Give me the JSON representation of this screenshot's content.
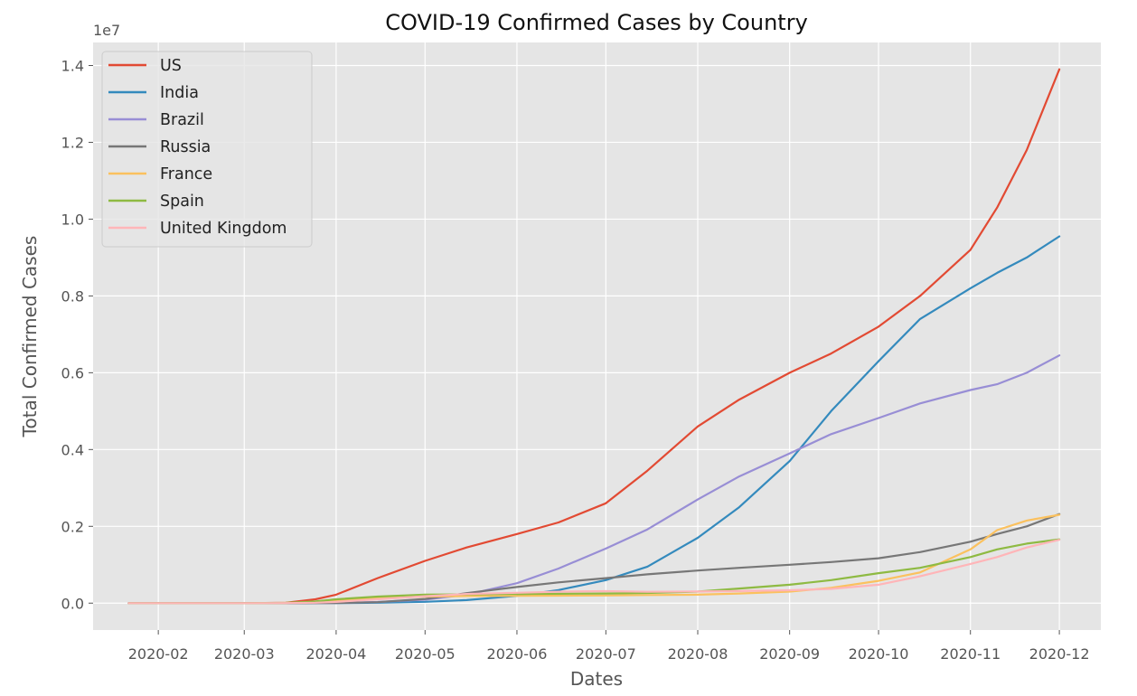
{
  "chart_data": {
    "type": "line",
    "title": "COVID-19 Confirmed Cases by Country",
    "xlabel": "Dates",
    "ylabel": "Total Confirmed Cases",
    "y_offset_label": "1e7",
    "y_multiplier": 10000000,
    "x_ticks": [
      "2020-02",
      "2020-03",
      "2020-04",
      "2020-05",
      "2020-06",
      "2020-07",
      "2020-08",
      "2020-09",
      "2020-10",
      "2020-11",
      "2020-12"
    ],
    "y_ticks": [
      "0.0",
      "0.2",
      "0.4",
      "0.6",
      "0.8",
      "1.0",
      "1.2",
      "1.4"
    ],
    "xlim": [
      "2020-01-10",
      "2020-12-15"
    ],
    "ylim": [
      -0.07,
      1.46
    ],
    "grid": true,
    "legend_position": "upper-left",
    "style": "ggplot",
    "x": [
      "2020-01-22",
      "2020-02-15",
      "2020-03-01",
      "2020-03-15",
      "2020-03-25",
      "2020-04-01",
      "2020-04-15",
      "2020-05-01",
      "2020-05-15",
      "2020-06-01",
      "2020-06-15",
      "2020-07-01",
      "2020-07-15",
      "2020-08-01",
      "2020-08-15",
      "2020-09-01",
      "2020-09-15",
      "2020-10-01",
      "2020-10-15",
      "2020-11-01",
      "2020-11-10",
      "2020-11-20",
      "2020-12-01"
    ],
    "series": [
      {
        "name": "US",
        "color": "#E24A33",
        "values": [
          0,
          0,
          0,
          0.001,
          0.01,
          0.022,
          0.065,
          0.11,
          0.145,
          0.18,
          0.21,
          0.26,
          0.345,
          0.46,
          0.53,
          0.6,
          0.65,
          0.72,
          0.8,
          0.92,
          1.03,
          1.18,
          1.39
        ]
      },
      {
        "name": "India",
        "color": "#348ABD",
        "values": [
          0,
          0,
          0,
          0,
          0.0001,
          0.0002,
          0.001,
          0.0035,
          0.008,
          0.019,
          0.034,
          0.06,
          0.095,
          0.17,
          0.25,
          0.37,
          0.5,
          0.63,
          0.74,
          0.82,
          0.86,
          0.9,
          0.955
        ]
      },
      {
        "name": "Brazil",
        "color": "#988ED5",
        "values": [
          0,
          0,
          0,
          0.0001,
          0.0003,
          0.0006,
          0.003,
          0.009,
          0.022,
          0.052,
          0.09,
          0.142,
          0.192,
          0.27,
          0.33,
          0.39,
          0.44,
          0.482,
          0.52,
          0.555,
          0.57,
          0.6,
          0.645
        ]
      },
      {
        "name": "Russia",
        "color": "#777777",
        "values": [
          0,
          0,
          0,
          0,
          0.0001,
          0.0003,
          0.0025,
          0.011,
          0.026,
          0.042,
          0.054,
          0.065,
          0.075,
          0.085,
          0.092,
          0.1,
          0.107,
          0.117,
          0.133,
          0.16,
          0.18,
          0.2,
          0.232
        ]
      },
      {
        "name": "France",
        "color": "#FBC15E",
        "values": [
          0,
          0,
          0,
          0.0005,
          0.0025,
          0.006,
          0.0135,
          0.017,
          0.0185,
          0.019,
          0.0195,
          0.02,
          0.021,
          0.022,
          0.025,
          0.03,
          0.04,
          0.058,
          0.08,
          0.14,
          0.19,
          0.215,
          0.23
        ]
      },
      {
        "name": "Spain",
        "color": "#8EBA42",
        "values": [
          0,
          0,
          0,
          0.0006,
          0.0047,
          0.01,
          0.017,
          0.022,
          0.023,
          0.024,
          0.0245,
          0.025,
          0.0265,
          0.03,
          0.038,
          0.048,
          0.06,
          0.078,
          0.092,
          0.12,
          0.14,
          0.155,
          0.166
        ]
      },
      {
        "name": "United Kingdom",
        "color": "#FFB5B8",
        "values": [
          0,
          0,
          0,
          0.0002,
          0.0012,
          0.0032,
          0.01,
          0.018,
          0.024,
          0.027,
          0.0298,
          0.0313,
          0.0295,
          0.0303,
          0.0315,
          0.0335,
          0.037,
          0.048,
          0.07,
          0.102,
          0.12,
          0.145,
          0.165
        ]
      }
    ]
  }
}
